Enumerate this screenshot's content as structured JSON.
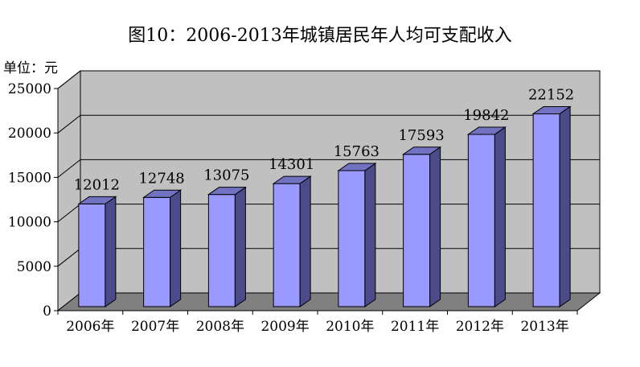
{
  "title": "图10：2006-2013年城镇居民年人均可支配收入",
  "unit_label": "单位：元",
  "chart_data": {
    "type": "bar",
    "title": "图10：2006-2013年城镇居民年人均可支配收入",
    "ylabel": "单位：元",
    "categories": [
      "2006年",
      "2007年",
      "2008年",
      "2009年",
      "2010年",
      "2011年",
      "2012年",
      "2013年"
    ],
    "values": [
      12012,
      12748,
      13075,
      14301,
      15763,
      17593,
      19842,
      22152
    ],
    "data_labels": [
      "12012",
      "12748",
      "13075",
      "14301",
      "15763",
      "17593",
      "19842",
      "22152"
    ],
    "yticks": [
      "0",
      "5000",
      "10000",
      "15000",
      "20000",
      "25000"
    ],
    "ylim": [
      0,
      25000
    ],
    "grid": true,
    "legend": "none",
    "colors": {
      "bar_front": "#9999ff",
      "bar_side": "#4b4b8a",
      "bar_top": "#7272c2",
      "wall": "#c0c0c0",
      "floor": "#808080",
      "gridline": "#000000"
    }
  }
}
